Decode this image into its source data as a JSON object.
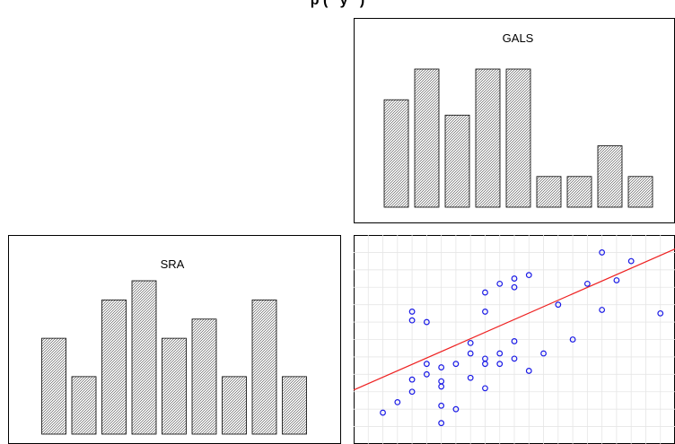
{
  "title": "p (   y   )",
  "chart_data": [
    {
      "type": "bar",
      "title": "GALS",
      "values": [
        7,
        9,
        6,
        9,
        9,
        2,
        2,
        4,
        2
      ]
    },
    {
      "type": "bar",
      "title": "SRA",
      "values": [
        5,
        3,
        7,
        8,
        5,
        6,
        3,
        7,
        3
      ]
    },
    {
      "type": "scatter",
      "grid": true,
      "xlim": [
        0,
        22
      ],
      "ylim": [
        0,
        12
      ],
      "points": [
        [
          2,
          1.8
        ],
        [
          3,
          2.4
        ],
        [
          4,
          3.0
        ],
        [
          4,
          7.1
        ],
        [
          4,
          7.6
        ],
        [
          4,
          3.7
        ],
        [
          5,
          7.0
        ],
        [
          5,
          4.6
        ],
        [
          5,
          4.0
        ],
        [
          6,
          4.4
        ],
        [
          6,
          3.6
        ],
        [
          6,
          3.3
        ],
        [
          6,
          2.2
        ],
        [
          6,
          1.2
        ],
        [
          7,
          2.0
        ],
        [
          7,
          4.6
        ],
        [
          8,
          3.8
        ],
        [
          8,
          5.2
        ],
        [
          8,
          5.8
        ],
        [
          9,
          3.2
        ],
        [
          9,
          4.6
        ],
        [
          9,
          4.9
        ],
        [
          9,
          7.6
        ],
        [
          9,
          8.7
        ],
        [
          10,
          9.2
        ],
        [
          10,
          5.2
        ],
        [
          10,
          4.6
        ],
        [
          11,
          9.5
        ],
        [
          11,
          9.0
        ],
        [
          11,
          4.9
        ],
        [
          11,
          5.9
        ],
        [
          12,
          9.7
        ],
        [
          12,
          4.2
        ],
        [
          13,
          5.2
        ],
        [
          14,
          8.0
        ],
        [
          15,
          6.0
        ],
        [
          16,
          9.2
        ],
        [
          17,
          11.0
        ],
        [
          17,
          7.7
        ],
        [
          18,
          9.4
        ],
        [
          19,
          10.5
        ],
        [
          21,
          7.5
        ]
      ],
      "fit_line": {
        "x": [
          0,
          22
        ],
        "y": [
          3.1,
          11.2
        ]
      }
    }
  ]
}
